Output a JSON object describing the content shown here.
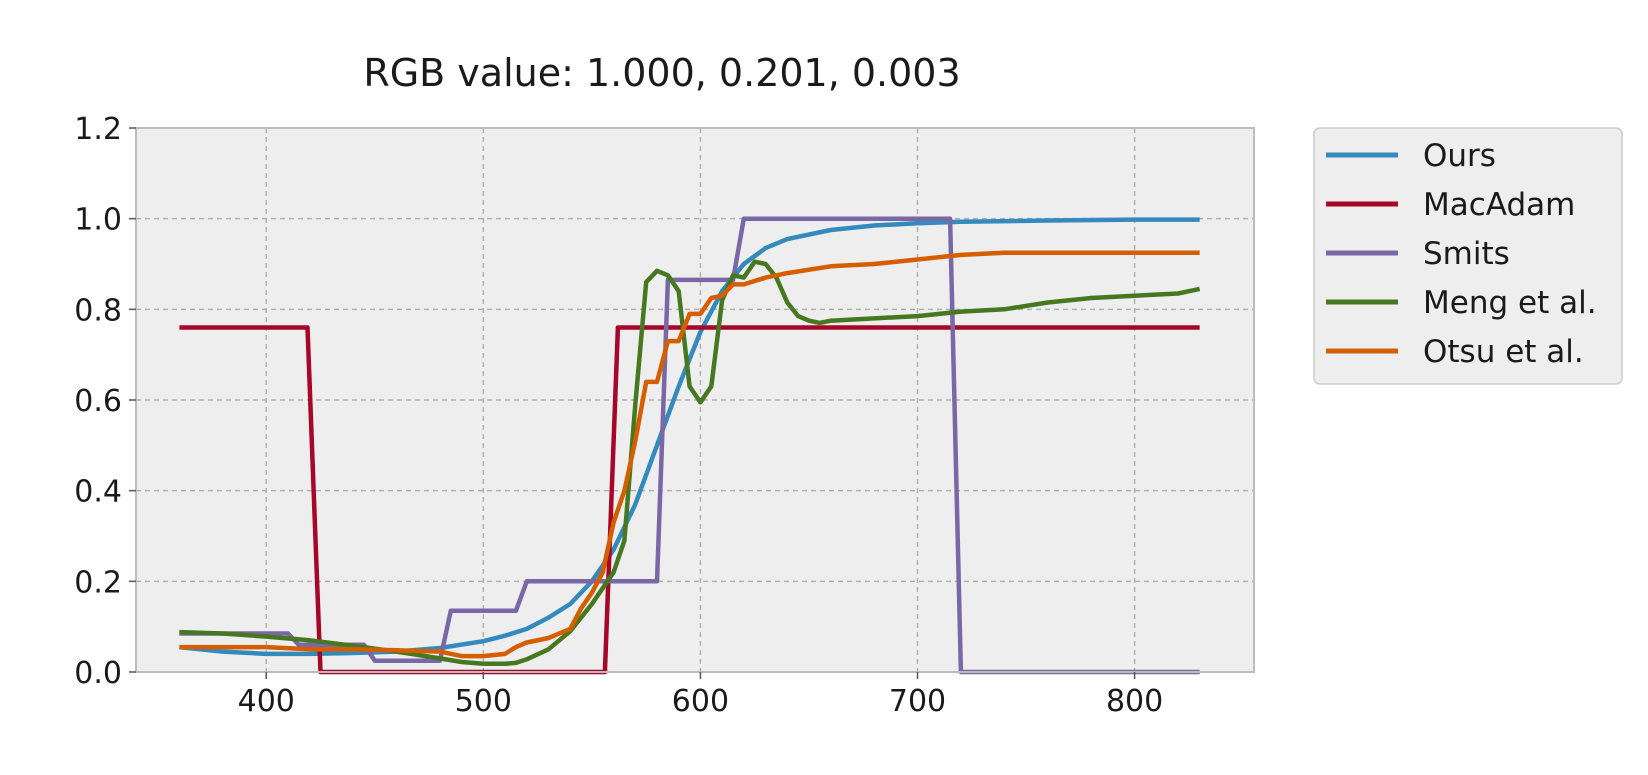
{
  "chart_data": {
    "type": "line",
    "title": "RGB value: 1.000, 0.201, 0.003",
    "xlabel": "",
    "ylabel": "",
    "xlim": [
      340,
      855
    ],
    "ylim": [
      0,
      1.2
    ],
    "xticks": [
      400,
      500,
      600,
      700,
      800
    ],
    "yticks": [
      0.0,
      0.2,
      0.4,
      0.6,
      0.8,
      1.0,
      1.2
    ],
    "xtick_labels": [
      "400",
      "500",
      "600",
      "700",
      "800"
    ],
    "ytick_labels": [
      "0.0",
      "0.2",
      "0.4",
      "0.6",
      "0.8",
      "1.0",
      "1.2"
    ],
    "grid": true,
    "legend_position": "outside-upper-right",
    "series": [
      {
        "name": "Ours",
        "color": "#348abd",
        "x": [
          360,
          380,
          400,
          420,
          440,
          460,
          480,
          500,
          510,
          520,
          530,
          540,
          550,
          560,
          570,
          580,
          590,
          600,
          610,
          620,
          630,
          640,
          660,
          680,
          700,
          720,
          760,
          800,
          830
        ],
        "y": [
          0.055,
          0.045,
          0.04,
          0.04,
          0.042,
          0.045,
          0.053,
          0.068,
          0.08,
          0.095,
          0.12,
          0.15,
          0.2,
          0.27,
          0.37,
          0.5,
          0.63,
          0.75,
          0.84,
          0.9,
          0.935,
          0.955,
          0.975,
          0.985,
          0.99,
          0.993,
          0.996,
          0.998,
          0.998
        ]
      },
      {
        "name": "MacAdam",
        "color": "#a60628",
        "x": [
          360,
          419,
          425,
          556,
          562,
          830
        ],
        "y": [
          0.76,
          0.76,
          0.0,
          0.0,
          0.76,
          0.76
        ]
      },
      {
        "name": "Smits",
        "color": "#7a68a6",
        "x": [
          360,
          410,
          415,
          445,
          450,
          480,
          485,
          515,
          520,
          580,
          585,
          615,
          620,
          715,
          720,
          830
        ],
        "y": [
          0.085,
          0.085,
          0.06,
          0.06,
          0.025,
          0.025,
          0.135,
          0.135,
          0.2,
          0.2,
          0.865,
          0.865,
          1.0,
          1.0,
          0.0,
          0.0
        ]
      },
      {
        "name": "Meng et al.",
        "color": "#467821",
        "x": [
          360,
          380,
          400,
          420,
          440,
          460,
          480,
          490,
          500,
          510,
          515,
          520,
          530,
          540,
          550,
          560,
          565,
          570,
          575,
          580,
          585,
          590,
          595,
          600,
          605,
          610,
          615,
          620,
          625,
          630,
          635,
          640,
          645,
          650,
          655,
          660,
          680,
          700,
          720,
          740,
          760,
          780,
          800,
          820,
          830
        ],
        "y": [
          0.088,
          0.085,
          0.078,
          0.07,
          0.058,
          0.045,
          0.03,
          0.022,
          0.018,
          0.018,
          0.02,
          0.028,
          0.05,
          0.09,
          0.15,
          0.22,
          0.29,
          0.59,
          0.86,
          0.885,
          0.875,
          0.84,
          0.63,
          0.595,
          0.63,
          0.82,
          0.875,
          0.87,
          0.905,
          0.9,
          0.87,
          0.815,
          0.785,
          0.775,
          0.77,
          0.775,
          0.78,
          0.785,
          0.795,
          0.8,
          0.815,
          0.825,
          0.83,
          0.835,
          0.845
        ]
      },
      {
        "name": "Otsu et al.",
        "color": "#d55e00",
        "x": [
          360,
          380,
          400,
          420,
          440,
          460,
          480,
          490,
          500,
          510,
          515,
          520,
          530,
          540,
          545,
          550,
          555,
          560,
          565,
          570,
          575,
          580,
          585,
          590,
          595,
          600,
          605,
          610,
          615,
          620,
          630,
          640,
          660,
          680,
          700,
          720,
          740,
          760,
          800,
          830
        ],
        "y": [
          0.055,
          0.055,
          0.055,
          0.05,
          0.05,
          0.048,
          0.045,
          0.035,
          0.035,
          0.04,
          0.055,
          0.065,
          0.075,
          0.095,
          0.14,
          0.175,
          0.22,
          0.33,
          0.4,
          0.51,
          0.64,
          0.64,
          0.73,
          0.73,
          0.79,
          0.79,
          0.825,
          0.83,
          0.855,
          0.855,
          0.87,
          0.88,
          0.895,
          0.9,
          0.91,
          0.92,
          0.925,
          0.925,
          0.925,
          0.925
        ]
      }
    ]
  }
}
